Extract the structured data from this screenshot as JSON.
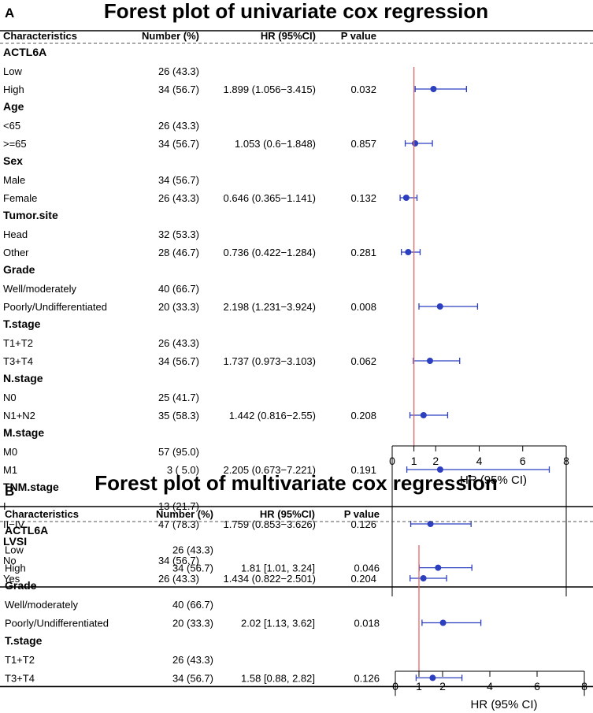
{
  "figure": {
    "colors": {
      "point": "#2b3fbf",
      "ci": "#2b3fbf",
      "ref_line": "#e06666",
      "text": "#000000"
    }
  },
  "chart_data": [
    {
      "type": "forest",
      "panel_label": "A",
      "title": "Forest plot of univariate cox regression",
      "columns": [
        "Characteristics",
        "Number (%)",
        "HR (95%CI)",
        "P value"
      ],
      "xlabel": "HR (95% CI)",
      "xlim": [
        0,
        8
      ],
      "xticks": [
        "0",
        "1",
        "2",
        "4",
        "6",
        "8"
      ],
      "ref_value": 1,
      "rows": [
        {
          "kind": "header",
          "label": "ACTL6A"
        },
        {
          "kind": "level",
          "label": "Low",
          "n": "26 (43.3)"
        },
        {
          "kind": "level",
          "label": "High",
          "n": "34 (56.7)",
          "hr_text": "1.899 (1.056−3.415)",
          "p": "0.032",
          "hr": 1.899,
          "lo": 1.056,
          "hi": 3.415
        },
        {
          "kind": "header",
          "label": "Age"
        },
        {
          "kind": "level",
          "label": "<65",
          "n": "26 (43.3)"
        },
        {
          "kind": "level",
          "label": ">=65",
          "n": "34 (56.7)",
          "hr_text": "1.053 (0.6−1.848)",
          "p": "0.857",
          "hr": 1.053,
          "lo": 0.6,
          "hi": 1.848
        },
        {
          "kind": "header",
          "label": "Sex"
        },
        {
          "kind": "level",
          "label": "Male",
          "n": "34 (56.7)"
        },
        {
          "kind": "level",
          "label": "Female",
          "n": "26 (43.3)",
          "hr_text": "0.646 (0.365−1.141)",
          "p": "0.132",
          "hr": 0.646,
          "lo": 0.365,
          "hi": 1.141
        },
        {
          "kind": "header",
          "label": "Tumor.site"
        },
        {
          "kind": "level",
          "label": "Head",
          "n": "32 (53.3)"
        },
        {
          "kind": "level",
          "label": "Other",
          "n": "28 (46.7)",
          "hr_text": "0.736 (0.422−1.284)",
          "p": "0.281",
          "hr": 0.736,
          "lo": 0.422,
          "hi": 1.284
        },
        {
          "kind": "header",
          "label": "Grade"
        },
        {
          "kind": "level",
          "label": "Well/moderately",
          "n": "40 (66.7)"
        },
        {
          "kind": "level",
          "label": "Poorly/Undifferentiated",
          "n": "20 (33.3)",
          "hr_text": "2.198 (1.231−3.924)",
          "p": "0.008",
          "hr": 2.198,
          "lo": 1.231,
          "hi": 3.924
        },
        {
          "kind": "header",
          "label": "T.stage"
        },
        {
          "kind": "level",
          "label": "T1+T2",
          "n": "26 (43.3)"
        },
        {
          "kind": "level",
          "label": "T3+T4",
          "n": "34 (56.7)",
          "hr_text": "1.737 (0.973−3.103)",
          "p": "0.062",
          "hr": 1.737,
          "lo": 0.973,
          "hi": 3.103
        },
        {
          "kind": "header",
          "label": "N.stage"
        },
        {
          "kind": "level",
          "label": "N0",
          "n": "25 (41.7)"
        },
        {
          "kind": "level",
          "label": "N1+N2",
          "n": "35 (58.3)",
          "hr_text": "1.442 (0.816−2.55)",
          "p": "0.208",
          "hr": 1.442,
          "lo": 0.816,
          "hi": 2.55
        },
        {
          "kind": "header",
          "label": "M.stage"
        },
        {
          "kind": "level",
          "label": "M0",
          "n": "57 (95.0)"
        },
        {
          "kind": "level",
          "label": "M1",
          "n": "3 ( 5.0)",
          "hr_text": "2.205 (0.673−7.221)",
          "p": "0.191",
          "hr": 2.205,
          "lo": 0.673,
          "hi": 7.221
        },
        {
          "kind": "header",
          "label": "TNM.stage"
        },
        {
          "kind": "level",
          "label": "I",
          "n": "13 (21.7)"
        },
        {
          "kind": "level",
          "label": "II−IV",
          "n": "47 (78.3)",
          "hr_text": "1.759 (0.853−3.626)",
          "p": "0.126",
          "hr": 1.759,
          "lo": 0.853,
          "hi": 3.626
        },
        {
          "kind": "header",
          "label": "LVSI"
        },
        {
          "kind": "level",
          "label": "No",
          "n": "34 (56.7)"
        },
        {
          "kind": "level",
          "label": "Yes",
          "n": "26 (43.3)",
          "hr_text": "1.434 (0.822−2.501)",
          "p": "0.204",
          "hr": 1.434,
          "lo": 0.822,
          "hi": 2.501
        }
      ]
    },
    {
      "type": "forest",
      "panel_label": "B",
      "title": "Forest plot of multivariate cox regression",
      "columns": [
        "Characteristics",
        "Number (%)",
        "HR (95%CI)",
        "P value"
      ],
      "xlabel": "HR (95% CI)",
      "xlim": [
        0,
        8
      ],
      "xticks": [
        "0",
        "1",
        "2",
        "4",
        "6",
        "8"
      ],
      "ref_value": 1,
      "rows": [
        {
          "kind": "header",
          "label": "ACTL6A"
        },
        {
          "kind": "level",
          "label": "Low",
          "n": "26 (43.3)"
        },
        {
          "kind": "level",
          "label": "High",
          "n": "34 (56.7)",
          "hr_text": "1.81 [1.01, 3.24]",
          "p": "0.046",
          "hr": 1.81,
          "lo": 1.01,
          "hi": 3.24
        },
        {
          "kind": "header",
          "label": "Grade"
        },
        {
          "kind": "level",
          "label": "Well/moderately",
          "n": "40 (66.7)"
        },
        {
          "kind": "level",
          "label": "Poorly/Undifferentiated",
          "n": "20 (33.3)",
          "hr_text": "2.02 [1.13, 3.62]",
          "p": "0.018",
          "hr": 2.02,
          "lo": 1.13,
          "hi": 3.62
        },
        {
          "kind": "header",
          "label": "T.stage"
        },
        {
          "kind": "level",
          "label": "T1+T2",
          "n": "26 (43.3)"
        },
        {
          "kind": "level",
          "label": "T3+T4",
          "n": "34 (56.7)",
          "hr_text": "1.58 [0.88, 2.82]",
          "p": "0.126",
          "hr": 1.58,
          "lo": 0.88,
          "hi": 2.82
        }
      ]
    }
  ]
}
